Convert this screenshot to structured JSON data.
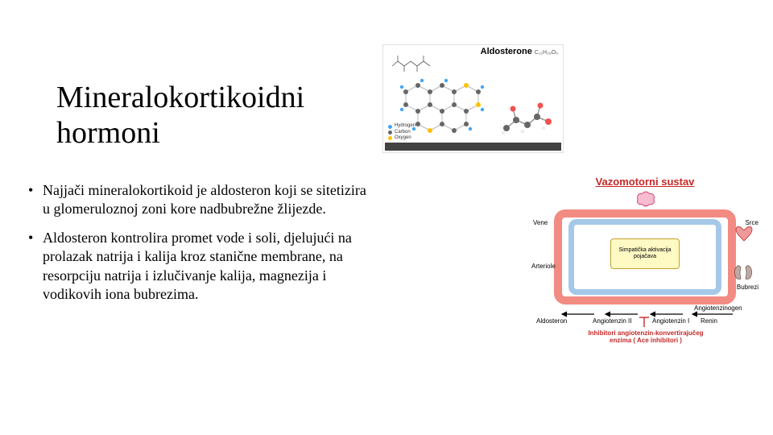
{
  "title_line1": "Mineralokortikoidni",
  "title_line2": "hormoni",
  "bullets": [
    "Najjači mineralokortikoid je aldosteron koji se sitetizira u glomeruloznoj zoni kore nadbubrežne žlijezde.",
    "Aldosteron kontrolira promet vode i soli, djelujući na prolazak natrija i kalija kroz stanične membrane, na resorpciju natrija i izlučivanje kalija, magnezija i vodikovih iona bubrezima."
  ],
  "fig_top": {
    "caption": "Aldosterone",
    "formula": "C₂₁H₂₈O₅",
    "hex_colors": [
      "#666666",
      "#ffc107",
      "#42a5f5"
    ],
    "line_color": "#888888",
    "legend_items": [
      {
        "label": "Hydrogen",
        "color": "#42a5f5"
      },
      {
        "label": "Carbon",
        "color": "#666666"
      },
      {
        "label": "Oxygen",
        "color": "#ffc107"
      }
    ],
    "footer_color": "#424242"
  },
  "fig_right": {
    "title": "Vazomotorni sustav",
    "loop_outer_color": "#f28b82",
    "loop_inner_color": "#a5c8e8",
    "center_box": "Simpatička aktivacija\\npojačava",
    "center_box_bg": "#fff9c4",
    "labels": {
      "vene": "Vene",
      "arteriole": "Arteriole",
      "srce": "Srce",
      "bubrezi": "Bubrezi",
      "aldosteron": "Aldosteron",
      "angiotenzinogen": "Angiotenzinogen",
      "angiotenzin2": "Angiotenzin II",
      "angiotenzin1": "Angiotenzin I",
      "renin": "Renin",
      "inhibitor": "Inhibitori angiotenzin-konvertirajučeg\\nenzima ( Ace inhibitori )"
    },
    "label_color_red": "#c62828"
  },
  "colors": {
    "background": "#ffffff",
    "text": "#000000"
  },
  "fontsize": {
    "title": 38,
    "body": 18,
    "fig_caption": 11,
    "fig_label": 8
  }
}
